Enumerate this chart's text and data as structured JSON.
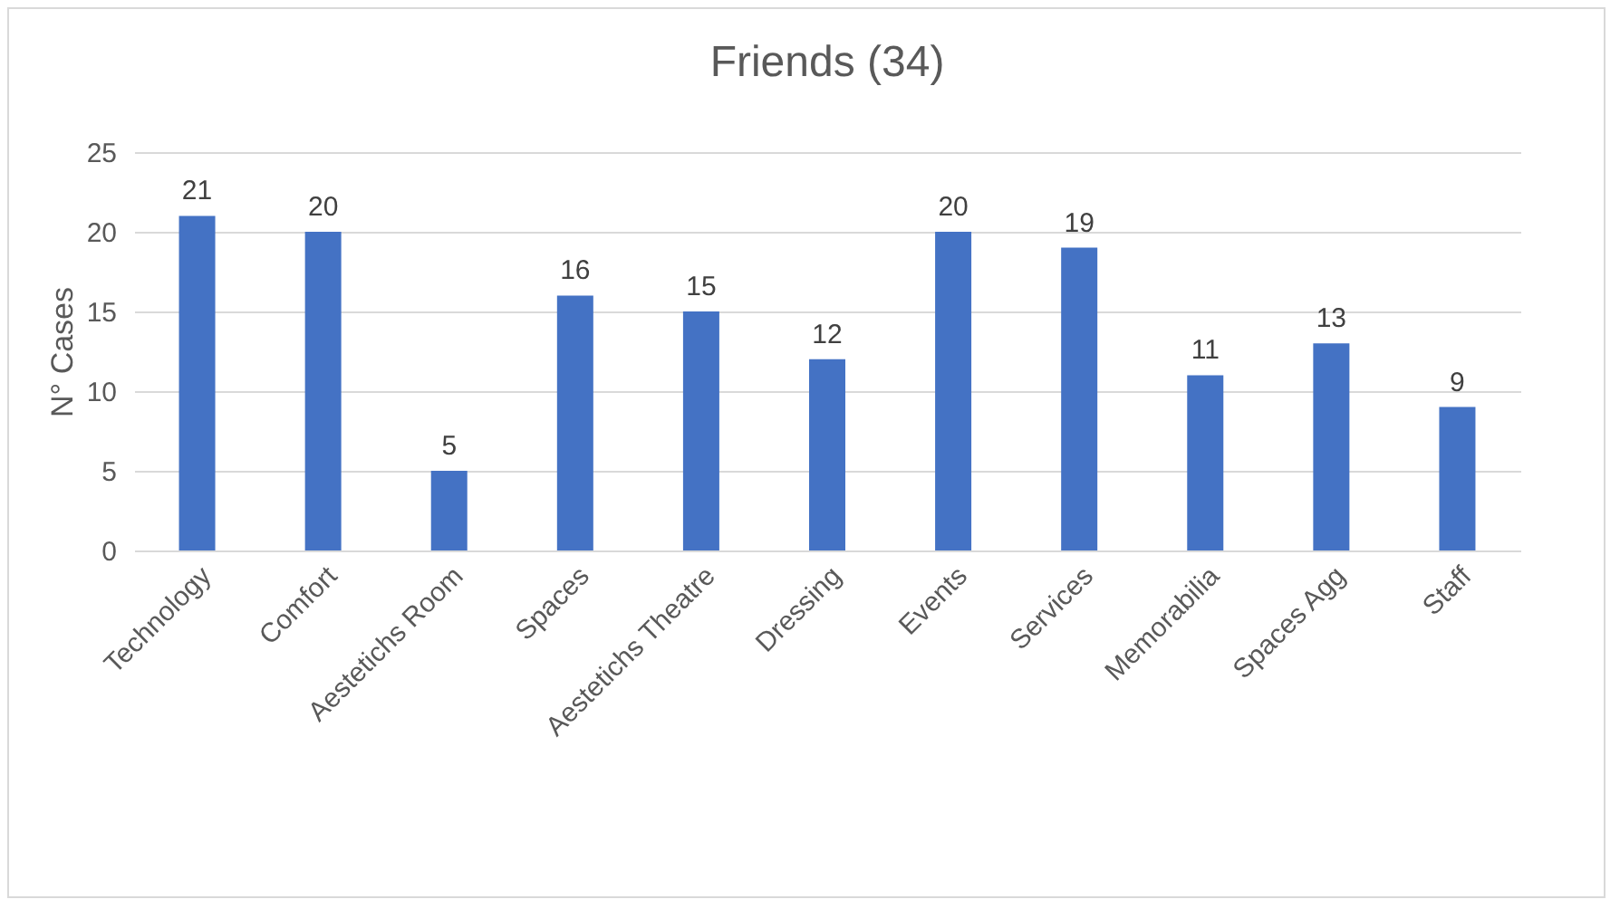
{
  "chart_data": {
    "type": "bar",
    "title": "Friends (34)",
    "ylabel": "N° Cases",
    "categories": [
      "Technology",
      "Comfort",
      "Aestetichs Room",
      "Spaces",
      "Aestetichs Theatre",
      "Dressing",
      "Events",
      "Services",
      "Memorabilia",
      "Spaces Agg",
      "Staff"
    ],
    "values": [
      21,
      20,
      5,
      16,
      15,
      12,
      20,
      19,
      11,
      13,
      9
    ],
    "color": "#4472c4",
    "ylim": [
      0,
      25
    ],
    "yticks": [
      0,
      5,
      10,
      15,
      20,
      25
    ],
    "grid": true,
    "data_labels": true
  }
}
